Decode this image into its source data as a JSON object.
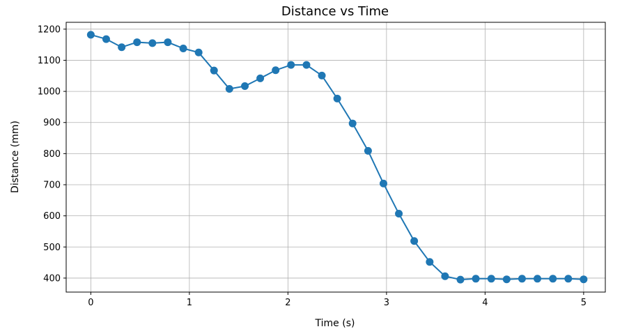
{
  "chart_data": {
    "type": "line",
    "title": "Distance vs Time",
    "xlabel": "Time (s)",
    "ylabel": "Distance (mm)",
    "xlim": [
      -0.25,
      5.22
    ],
    "ylim": [
      355,
      1222
    ],
    "xticks": [
      0,
      1,
      2,
      3,
      4,
      5
    ],
    "yticks": [
      400,
      500,
      600,
      700,
      800,
      900,
      1000,
      1100,
      1200
    ],
    "grid": true,
    "legend": "none",
    "series": [
      {
        "color": "#1f77b4",
        "marker": "circle",
        "x": [
          0,
          0.156,
          0.313,
          0.469,
          0.625,
          0.781,
          0.938,
          1.094,
          1.25,
          1.406,
          1.563,
          1.719,
          1.875,
          2.031,
          2.188,
          2.344,
          2.5,
          2.656,
          2.813,
          2.969,
          3.125,
          3.281,
          3.438,
          3.594,
          3.75,
          3.906,
          4.063,
          4.219,
          4.375,
          4.531,
          4.688,
          4.844,
          5.0
        ],
        "y": [
          1182,
          1168,
          1142,
          1158,
          1155,
          1158,
          1138,
          1125,
          1067,
          1008,
          1017,
          1042,
          1068,
          1085,
          1085,
          1051,
          977,
          897,
          809,
          704,
          607,
          519,
          452,
          406,
          395,
          398,
          398,
          396,
          398,
          398,
          398,
          398,
          396
        ]
      }
    ]
  }
}
